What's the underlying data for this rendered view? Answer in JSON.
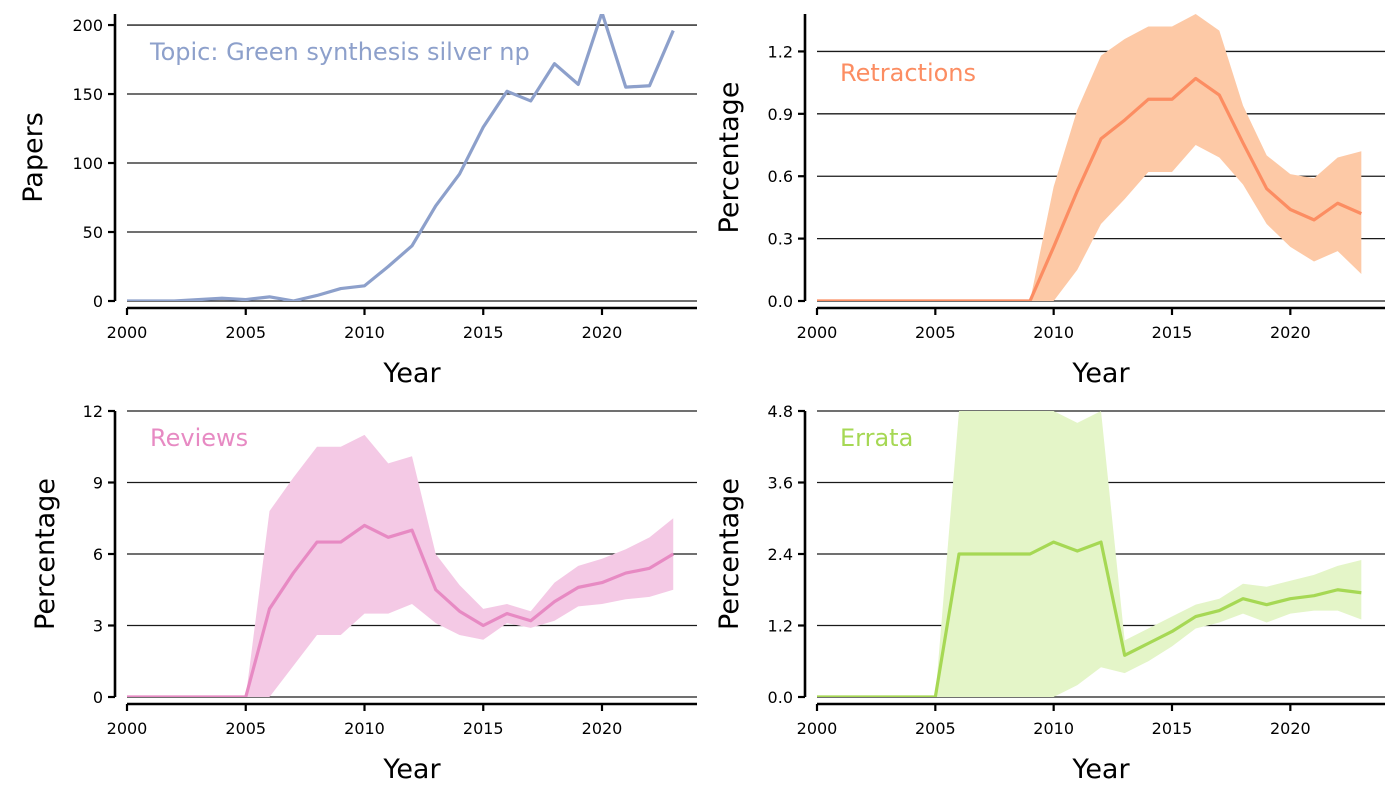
{
  "chart_data": [
    {
      "type": "line",
      "name": "papers",
      "color": "#8da0cb",
      "band_color": "#8da0cb",
      "panel_label": "Topic: Green synthesis silver np",
      "xlabel": "Year",
      "ylabel": "Papers",
      "xlim": [
        2000,
        2024
      ],
      "ylim": [
        0,
        208
      ],
      "xticks": [
        2000,
        2005,
        2010,
        2015,
        2020
      ],
      "yticks": [
        0,
        50,
        100,
        150,
        200
      ],
      "yticks_labels": [
        "0",
        "50",
        "100",
        "150",
        "200"
      ],
      "grid": "horizontal",
      "x": [
        2000,
        2001,
        2002,
        2003,
        2004,
        2005,
        2006,
        2007,
        2008,
        2009,
        2010,
        2011,
        2012,
        2013,
        2014,
        2015,
        2016,
        2017,
        2018,
        2019,
        2020,
        2021,
        2022,
        2023
      ],
      "y": [
        0,
        0,
        0,
        1,
        2,
        1,
        3,
        0,
        4,
        9,
        11,
        25,
        40,
        69,
        92,
        126,
        152,
        145,
        172,
        157,
        209,
        155,
        156,
        196
      ]
    },
    {
      "type": "line",
      "name": "retractions",
      "color": "#fc8d62",
      "band_color": "#fdc9a6",
      "panel_label": "Retractions",
      "xlabel": "Year",
      "ylabel": "Percentage",
      "xlim": [
        2000,
        2024
      ],
      "ylim": [
        0,
        1.38
      ],
      "xticks": [
        2000,
        2005,
        2010,
        2015,
        2020
      ],
      "yticks": [
        0,
        0.3,
        0.6,
        0.9,
        1.2
      ],
      "yticks_labels": [
        "0.0",
        "0.3",
        "0.6",
        "0.9",
        "1.2"
      ],
      "grid": "horizontal",
      "x": [
        2000,
        2001,
        2002,
        2003,
        2004,
        2005,
        2006,
        2007,
        2008,
        2009,
        2010,
        2011,
        2012,
        2013,
        2014,
        2015,
        2016,
        2017,
        2018,
        2019,
        2020,
        2021,
        2022,
        2023
      ],
      "y": [
        0,
        0,
        0,
        0,
        0,
        0,
        0,
        0,
        0,
        0,
        0.26,
        0.53,
        0.78,
        0.87,
        0.97,
        0.97,
        1.07,
        0.99,
        0.76,
        0.54,
        0.44,
        0.39,
        0.47,
        0.42
      ],
      "lower": [
        0,
        0,
        0,
        0,
        0,
        0,
        0,
        0,
        0,
        0,
        0,
        0.15,
        0.37,
        0.49,
        0.62,
        0.62,
        0.75,
        0.69,
        0.56,
        0.37,
        0.26,
        0.19,
        0.24,
        0.13
      ],
      "upper": [
        0,
        0,
        0,
        0,
        0,
        0,
        0,
        0,
        0,
        0,
        0.55,
        0.92,
        1.18,
        1.26,
        1.32,
        1.32,
        1.38,
        1.3,
        0.94,
        0.7,
        0.61,
        0.59,
        0.69,
        0.72
      ]
    },
    {
      "type": "line",
      "name": "reviews",
      "color": "#e78ac3",
      "band_color": "#f4c9e5",
      "panel_label": "Reviews",
      "xlabel": "Year",
      "ylabel": "Percentage",
      "xlim": [
        2000,
        2024
      ],
      "ylim": [
        0,
        12
      ],
      "xticks": [
        2000,
        2005,
        2010,
        2015,
        2020
      ],
      "yticks": [
        0,
        3,
        6,
        9,
        12
      ],
      "yticks_labels": [
        "0",
        "3",
        "6",
        "9",
        "12"
      ],
      "grid": "horizontal",
      "x": [
        2000,
        2001,
        2002,
        2003,
        2004,
        2005,
        2006,
        2007,
        2008,
        2009,
        2010,
        2011,
        2012,
        2013,
        2014,
        2015,
        2016,
        2017,
        2018,
        2019,
        2020,
        2021,
        2022,
        2023
      ],
      "y": [
        0,
        0,
        0,
        0,
        0,
        0,
        3.7,
        5.2,
        6.5,
        6.5,
        7.2,
        6.7,
        7.0,
        4.5,
        3.6,
        3.0,
        3.5,
        3.2,
        4.0,
        4.6,
        4.8,
        5.2,
        5.4,
        6.0
      ],
      "lower": [
        0,
        0,
        0,
        0,
        0,
        0,
        0,
        1.3,
        2.6,
        2.6,
        3.5,
        3.5,
        3.9,
        3.1,
        2.6,
        2.4,
        3.1,
        2.9,
        3.2,
        3.8,
        3.9,
        4.1,
        4.2,
        4.5
      ],
      "upper": [
        0,
        0,
        0,
        0,
        0,
        0,
        7.8,
        9.2,
        10.5,
        10.5,
        11.0,
        9.8,
        10.1,
        6.0,
        4.7,
        3.7,
        3.9,
        3.6,
        4.8,
        5.5,
        5.8,
        6.2,
        6.7,
        7.5
      ]
    },
    {
      "type": "line",
      "name": "errata",
      "color": "#a6d854",
      "band_color": "#e4f5c8",
      "panel_label": "Errata",
      "xlabel": "Year",
      "ylabel": "Percentage",
      "xlim": [
        2000,
        2024
      ],
      "ylim": [
        0,
        4.8
      ],
      "xticks": [
        2000,
        2005,
        2010,
        2015,
        2020
      ],
      "yticks": [
        0,
        1.2,
        2.4,
        3.6,
        4.8
      ],
      "yticks_labels": [
        "0.0",
        "1.2",
        "2.4",
        "3.6",
        "4.8"
      ],
      "grid": "horizontal",
      "x": [
        2000,
        2001,
        2002,
        2003,
        2004,
        2005,
        2006,
        2007,
        2008,
        2009,
        2010,
        2011,
        2012,
        2013,
        2014,
        2015,
        2016,
        2017,
        2018,
        2019,
        2020,
        2021,
        2022,
        2023
      ],
      "y": [
        0,
        0,
        0,
        0,
        0,
        0,
        2.4,
        2.4,
        2.4,
        2.4,
        2.6,
        2.45,
        2.6,
        0.7,
        0.9,
        1.1,
        1.35,
        1.45,
        1.65,
        1.55,
        1.65,
        1.7,
        1.8,
        1.75
      ],
      "lower": [
        0,
        0,
        0,
        0,
        0,
        0,
        0,
        0,
        0,
        0,
        0,
        0.2,
        0.5,
        0.4,
        0.6,
        0.85,
        1.15,
        1.25,
        1.4,
        1.25,
        1.4,
        1.45,
        1.45,
        1.3
      ],
      "upper": [
        0,
        0,
        0,
        0,
        0,
        0,
        4.8,
        4.8,
        4.8,
        4.8,
        4.8,
        4.6,
        4.8,
        0.95,
        1.15,
        1.35,
        1.55,
        1.65,
        1.9,
        1.85,
        1.95,
        2.05,
        2.2,
        2.3
      ]
    }
  ]
}
